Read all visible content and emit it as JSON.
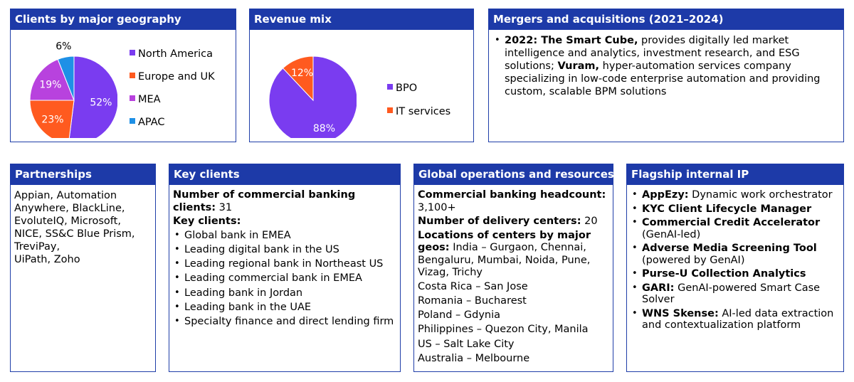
{
  "colors": {
    "header_bg": "#1d3aa8",
    "border": "#1f3ea8",
    "purple": "#7a3cf0",
    "orange": "#ff5a1f",
    "magenta": "#b842de",
    "blue": "#1e90e6"
  },
  "clients_geo": {
    "title": "Clients by major geography",
    "labels": [
      "52%",
      "23%",
      "19%",
      "6%"
    ]
  },
  "revenue_mix": {
    "title": "Revenue mix",
    "labels": [
      "88%",
      "12%"
    ]
  },
  "chart_data": [
    {
      "type": "pie",
      "title": "Clients by major geography",
      "categories": [
        "North America",
        "Europe and UK",
        "MEA",
        "APAC"
      ],
      "values": [
        52,
        23,
        19,
        6
      ],
      "colors": [
        "#7a3cf0",
        "#ff5a1f",
        "#b842de",
        "#1e90e6"
      ],
      "legend": "right"
    },
    {
      "type": "pie",
      "title": "Revenue mix",
      "categories": [
        "BPO",
        "IT services"
      ],
      "values": [
        88,
        12
      ],
      "colors": [
        "#7a3cf0",
        "#ff5a1f"
      ],
      "legend": "right"
    }
  ],
  "mergers": {
    "title": "Mergers and acquisitions (2021–2024)",
    "bold1": "2022: The Smart Cube,",
    "text1": " provides digitally led market intelligence and analytics, investment research, and ESG solutions; ",
    "bold2": "Vuram,",
    "text2": " hyper-automation services company specializing in low-code enterprise automation and providing custom, scalable BPM solutions"
  },
  "partnerships": {
    "title": "Partnerships",
    "lines": [
      "Appian, Automation",
      "Anywhere, BlackLine,",
      "EvoluteIQ, Microsoft,",
      "NICE, SS&C Blue Prism,",
      "TreviPay,",
      "UiPath, Zoho"
    ]
  },
  "key_clients": {
    "title": "Key clients",
    "count_label": "Number of commercial banking clients:",
    "count_value": " 31",
    "list_label": "Key clients:",
    "items": [
      "Global bank in EMEA",
      "Leading digital bank in the US",
      "Leading regional bank in Northeast US",
      "Leading commercial bank in EMEA",
      "Leading bank in Jordan",
      "Leading bank in the UAE",
      "Specialty finance and direct lending firm"
    ]
  },
  "global_ops": {
    "title": "Global operations and resources",
    "headcount_label": "Commercial banking headcount:",
    "headcount_value": "3,100+",
    "centers_label": "Number of delivery centers:",
    "centers_value": " 20",
    "locations_label": "Locations of centers by major geos:",
    "india": " India – Gurgaon, Chennai, Bengaluru, Mumbai, Noida, Pune, Vizag, Trichy",
    "others": [
      "Costa Rica – San Jose",
      "Romania – Bucharest",
      "Poland – Gdynia",
      "Philippines – Quezon City, Manila",
      "US – Salt Lake City",
      "Australia – Melbourne"
    ]
  },
  "flagship_ip": {
    "title": "Flagship internal IP",
    "items": [
      {
        "bold": "AppEzy:",
        "text": " Dynamic work orchestrator"
      },
      {
        "bold": "KYC Client Lifecycle Manager",
        "text": ""
      },
      {
        "bold": "Commercial Credit Accelerator",
        "text": " (GenAI-led)"
      },
      {
        "bold": "Adverse Media Screening Tool",
        "text": " (powered by GenAI)"
      },
      {
        "bold": "Purse-U Collection Analytics",
        "text": ""
      },
      {
        "bold": "GARI:",
        "text": " GenAI-powered Smart Case Solver"
      },
      {
        "bold": "WNS Skense:",
        "text": " AI-led data extraction and contextualization platform"
      }
    ]
  }
}
